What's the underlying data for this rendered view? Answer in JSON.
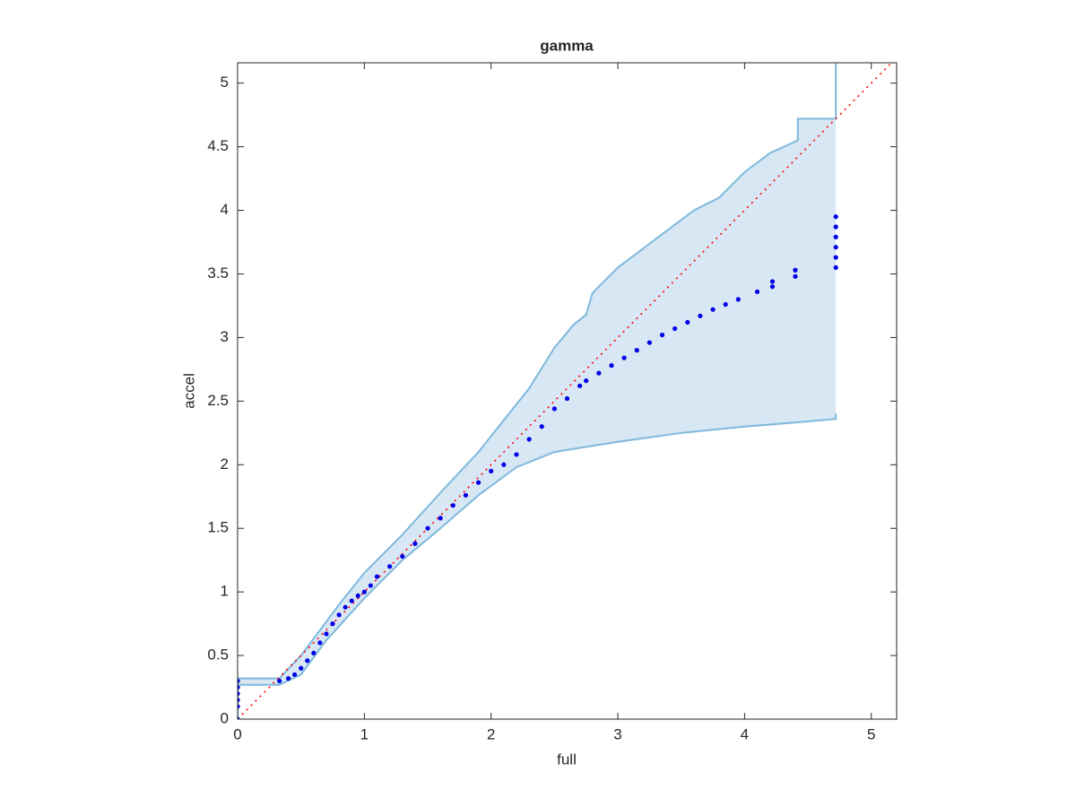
{
  "chart_data": {
    "type": "scatter",
    "title": "gamma",
    "x_label": "full",
    "y_label": "accel",
    "xlim": [
      0,
      5.2
    ],
    "ylim": [
      0,
      5.16
    ],
    "xticks": [
      0,
      1,
      2,
      3,
      4,
      5
    ],
    "yticks": [
      0,
      0.5,
      1,
      1.5,
      2,
      2.5,
      3,
      3.5,
      4,
      4.5,
      5
    ],
    "grid": false,
    "points": {
      "color": "#0000e6",
      "x": [
        0,
        0,
        0,
        0,
        0,
        0,
        0.33,
        0.4,
        0.45,
        0.5,
        0.55,
        0.6,
        0.65,
        0.7,
        0.75,
        0.8,
        0.85,
        0.9,
        0.95,
        1.0,
        1.05,
        1.1,
        1.2,
        1.3,
        1.4,
        1.5,
        1.6,
        1.7,
        1.8,
        1.9,
        2.0,
        2.1,
        2.2,
        2.3,
        2.4,
        2.5,
        2.6,
        2.7,
        2.75,
        2.85,
        2.95,
        3.05,
        3.15,
        3.25,
        3.35,
        3.45,
        3.55,
        3.65,
        3.75,
        3.85,
        3.95,
        4.1,
        4.22,
        4.22,
        4.4,
        4.4,
        4.72,
        4.72,
        4.72,
        4.72,
        4.72,
        4.72
      ],
      "y": [
        0,
        0.1,
        0.15,
        0.2,
        0.25,
        0.3,
        0.3,
        0.32,
        0.35,
        0.4,
        0.46,
        0.52,
        0.6,
        0.67,
        0.75,
        0.82,
        0.88,
        0.93,
        0.97,
        1.0,
        1.05,
        1.12,
        1.2,
        1.28,
        1.38,
        1.5,
        1.58,
        1.68,
        1.76,
        1.86,
        1.95,
        2.0,
        2.08,
        2.2,
        2.3,
        2.44,
        2.52,
        2.62,
        2.66,
        2.72,
        2.78,
        2.84,
        2.9,
        2.96,
        3.02,
        3.07,
        3.12,
        3.17,
        3.22,
        3.26,
        3.3,
        3.36,
        3.4,
        3.44,
        3.48,
        3.53,
        3.55,
        3.63,
        3.71,
        3.79,
        3.87,
        3.95
      ]
    },
    "band_upper": {
      "color": "#7fb8dc",
      "fill": "#d7e7f4",
      "x": [
        0,
        0,
        0.33,
        0.5,
        0.8,
        1.0,
        1.3,
        1.6,
        1.9,
        2.1,
        2.3,
        2.5,
        2.65,
        2.75,
        2.8,
        3.0,
        3.2,
        3.4,
        3.6,
        3.8,
        4.0,
        4.2,
        4.42,
        4.42,
        4.72,
        4.72
      ],
      "y": [
        0,
        0.32,
        0.32,
        0.5,
        0.9,
        1.15,
        1.45,
        1.78,
        2.1,
        2.35,
        2.6,
        2.92,
        3.1,
        3.18,
        3.35,
        3.55,
        3.7,
        3.85,
        4.0,
        4.1,
        4.3,
        4.45,
        4.55,
        4.72,
        4.72,
        5.16
      ]
    },
    "band_lower": {
      "color": "#7fb8dc",
      "x": [
        0,
        0.33,
        0.5,
        0.7,
        1.0,
        1.3,
        1.6,
        1.9,
        2.2,
        2.5,
        3.0,
        3.5,
        4.0,
        4.5,
        4.72,
        4.72
      ],
      "y": [
        0.27,
        0.27,
        0.35,
        0.62,
        0.95,
        1.25,
        1.5,
        1.76,
        1.98,
        2.1,
        2.18,
        2.25,
        2.3,
        2.34,
        2.36,
        2.4
      ]
    },
    "reference": {
      "color": "#ff0000",
      "x": [
        0,
        5.2
      ],
      "y": [
        0,
        5.2
      ]
    }
  }
}
